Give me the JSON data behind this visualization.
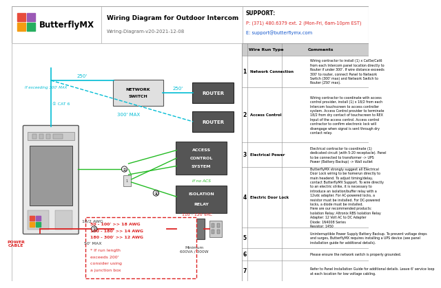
{
  "title": "Wiring Diagram for Outdoor Intercom",
  "subtitle": "Wiring-Diagram-v20-2021-12-08",
  "support_line1": "SUPPORT:",
  "support_line2": "P: (371) 480.6379 ext. 2 (Mon-Fri, 6am-10pm EST)",
  "support_line3": "E: support@butterflymx.com",
  "logo_text": "ButterflyMX",
  "bg_color": "#ffffff",
  "cyan_color": "#00bcd4",
  "green_color": "#22bb22",
  "red_color": "#dd2222",
  "table_rows": [
    {
      "num": "1",
      "type": "Network Connection",
      "comment": "Wiring contractor to install (1) x Cat5e/Cat6\nfrom each Intercom panel location directly to\nRouter if under 300'. If wire distance exceeds\n300' to router, connect Panel to Network\nSwitch (300' max) and Network Switch to\nRouter (250' max)."
    },
    {
      "num": "2",
      "type": "Access Control",
      "comment": "Wiring contractor to coordinate with access\ncontrol provider, install (1) x 18/2 from each\nIntercom touchscreen to access controller\nsystem. Access Control provider to terminate\n18/2 from dry contact of touchscreen to REX\nInput of the access control. Access control\ncontractor to confirm electronic lock will\ndisengage when signal is sent through dry\ncontact relay."
    },
    {
      "num": "3",
      "type": "Electrical Power",
      "comment": "Electrical contractor to coordinate (1)\ndedicated circuit (with 5-20 receptacle). Panel\nto be connected to transformer -> UPS\nPower (Battery Backup) -> Wall outlet"
    },
    {
      "num": "4",
      "type": "Electric Door Lock",
      "comment": "ButterflyMX strongly suggest all Electrical\nDoor Lock wiring to be homerun directly to\nmain headend. To adjust timing/delay,\ncontact ButterflyMX Support. To wire directly\nto an electric strike, it is necessary to\nintroduce an isolation/buffer relay with a\n12vdc adapter. For AC-powered locks, a\nresistor must be installed. For DC-powered\nlocks, a diode must be installed.\nHere are our recommended products:\nIsolation Relay: Altronix RBS Isolation Relay\nAdapter: 12 Volt AC to DC Adapter\nDiode: 1N4008 Series\nResistor: 1450"
    },
    {
      "num": "5",
      "type": "",
      "comment": "Uninterruptible Power Supply Battery Backup. To prevent voltage drops\nand surges, ButterflyMX requires installing a UPS device (see panel\ninstallation guide for additional details)."
    },
    {
      "num": "6",
      "type": "",
      "comment": "Please ensure the network switch is properly grounded."
    },
    {
      "num": "7",
      "type": "",
      "comment": "Refer to Panel Installation Guide for additional details. Leave 6' service loop\nat each location for low voltage cabling."
    }
  ]
}
